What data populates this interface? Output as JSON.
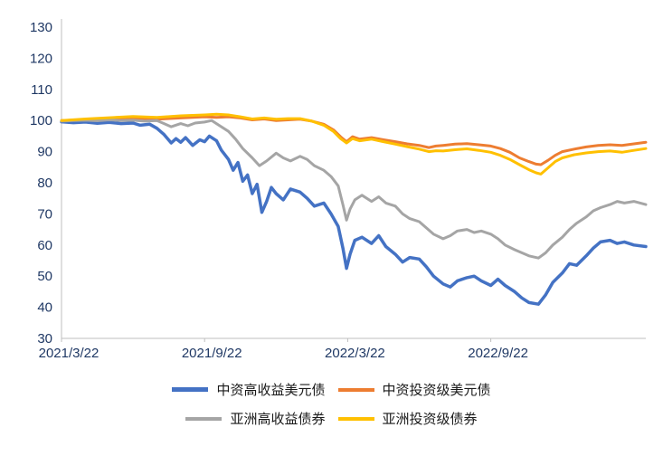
{
  "chart_data": {
    "type": "line",
    "title": "",
    "xlabel": "",
    "ylabel": "",
    "grid": false,
    "legend_position": "bottom",
    "axis_color": "#bfbfbf",
    "text_color": "#1f3864",
    "x_unit": "months since first tick",
    "x_range": [
      0,
      24.5
    ],
    "y_range": [
      30,
      130
    ],
    "y_ticks": [
      130,
      120,
      110,
      100,
      90,
      80,
      70,
      60,
      50,
      40,
      30
    ],
    "x_ticks": [
      {
        "pos": 0,
        "label": "2021/3/22"
      },
      {
        "pos": 6,
        "label": "2021/9/22"
      },
      {
        "pos": 12,
        "label": "2022/3/22"
      },
      {
        "pos": 18,
        "label": "2022/9/22"
      }
    ],
    "series": [
      {
        "name": "中资高收益美元债",
        "color": "#4472C4",
        "width": 3.5,
        "points": [
          [
            0,
            99.6
          ],
          [
            0.5,
            99.3
          ],
          [
            1,
            99.5
          ],
          [
            1.5,
            99.1
          ],
          [
            2,
            99.4
          ],
          [
            2.5,
            99.0
          ],
          [
            3,
            99.2
          ],
          [
            3.3,
            98.5
          ],
          [
            3.7,
            98.8
          ],
          [
            4,
            97.5
          ],
          [
            4.3,
            95.5
          ],
          [
            4.6,
            92.8
          ],
          [
            4.8,
            94.2
          ],
          [
            5,
            93.0
          ],
          [
            5.2,
            94.5
          ],
          [
            5.5,
            92.0
          ],
          [
            5.8,
            93.8
          ],
          [
            6,
            93.2
          ],
          [
            6.2,
            95.0
          ],
          [
            6.5,
            93.5
          ],
          [
            6.7,
            90.5
          ],
          [
            7,
            87.5
          ],
          [
            7.2,
            84.0
          ],
          [
            7.4,
            86.5
          ],
          [
            7.6,
            80.5
          ],
          [
            7.8,
            82.5
          ],
          [
            8,
            76.5
          ],
          [
            8.2,
            79.5
          ],
          [
            8.4,
            70.5
          ],
          [
            8.6,
            74.0
          ],
          [
            8.8,
            78.5
          ],
          [
            9,
            76.5
          ],
          [
            9.3,
            74.5
          ],
          [
            9.6,
            78.0
          ],
          [
            10,
            77.0
          ],
          [
            10.3,
            75.0
          ],
          [
            10.6,
            72.5
          ],
          [
            11,
            73.5
          ],
          [
            11.3,
            70.0
          ],
          [
            11.6,
            66.0
          ],
          [
            11.8,
            59.0
          ],
          [
            11.95,
            52.5
          ],
          [
            12.1,
            57.0
          ],
          [
            12.3,
            61.5
          ],
          [
            12.6,
            62.5
          ],
          [
            13,
            60.5
          ],
          [
            13.3,
            63.0
          ],
          [
            13.6,
            59.5
          ],
          [
            14,
            57.0
          ],
          [
            14.3,
            54.5
          ],
          [
            14.6,
            56.0
          ],
          [
            15,
            55.5
          ],
          [
            15.3,
            53.0
          ],
          [
            15.6,
            50.0
          ],
          [
            16,
            47.5
          ],
          [
            16.3,
            46.5
          ],
          [
            16.6,
            48.5
          ],
          [
            17,
            49.5
          ],
          [
            17.3,
            50.0
          ],
          [
            17.6,
            48.5
          ],
          [
            18,
            47.0
          ],
          [
            18.3,
            49.0
          ],
          [
            18.6,
            47.0
          ],
          [
            19,
            45.0
          ],
          [
            19.3,
            43.0
          ],
          [
            19.6,
            41.5
          ],
          [
            20,
            41.0
          ],
          [
            20.3,
            44.0
          ],
          [
            20.6,
            48.0
          ],
          [
            21,
            51.0
          ],
          [
            21.3,
            54.0
          ],
          [
            21.6,
            53.5
          ],
          [
            22,
            56.5
          ],
          [
            22.3,
            59.0
          ],
          [
            22.6,
            61.0
          ],
          [
            23,
            61.5
          ],
          [
            23.3,
            60.5
          ],
          [
            23.6,
            61.0
          ],
          [
            24,
            60.0
          ],
          [
            24.5,
            59.5
          ]
        ]
      },
      {
        "name": "中资投资级美元债",
        "color": "#ED7D31",
        "width": 3,
        "points": [
          [
            0,
            100.0
          ],
          [
            1,
            100.3
          ],
          [
            2,
            100.5
          ],
          [
            3,
            100.8
          ],
          [
            4,
            100.4
          ],
          [
            5,
            100.8
          ],
          [
            6,
            101.2
          ],
          [
            6.5,
            101.0
          ],
          [
            7,
            101.2
          ],
          [
            7.5,
            100.8
          ],
          [
            8,
            100.2
          ],
          [
            8.5,
            100.5
          ],
          [
            9,
            100.0
          ],
          [
            9.5,
            100.2
          ],
          [
            10,
            100.4
          ],
          [
            10.5,
            99.8
          ],
          [
            11,
            98.8
          ],
          [
            11.4,
            97.0
          ],
          [
            11.7,
            94.8
          ],
          [
            11.95,
            93.2
          ],
          [
            12.2,
            94.8
          ],
          [
            12.5,
            94.0
          ],
          [
            13,
            94.5
          ],
          [
            13.5,
            93.8
          ],
          [
            14,
            93.2
          ],
          [
            14.5,
            92.5
          ],
          [
            15,
            92.0
          ],
          [
            15.4,
            91.3
          ],
          [
            15.7,
            91.8
          ],
          [
            16,
            92.0
          ],
          [
            16.5,
            92.4
          ],
          [
            17,
            92.6
          ],
          [
            17.5,
            92.2
          ],
          [
            18,
            91.8
          ],
          [
            18.4,
            91.0
          ],
          [
            18.8,
            89.8
          ],
          [
            19.2,
            88.0
          ],
          [
            19.6,
            86.8
          ],
          [
            19.9,
            86.0
          ],
          [
            20.1,
            85.8
          ],
          [
            20.4,
            87.2
          ],
          [
            20.7,
            88.8
          ],
          [
            21,
            90.0
          ],
          [
            21.5,
            90.8
          ],
          [
            22,
            91.5
          ],
          [
            22.5,
            92.0
          ],
          [
            23,
            92.2
          ],
          [
            23.5,
            92.0
          ],
          [
            24,
            92.5
          ],
          [
            24.5,
            93.0
          ]
        ]
      },
      {
        "name": "亚洲高收益债券",
        "color": "#A5A5A5",
        "width": 3,
        "points": [
          [
            0,
            99.8
          ],
          [
            0.5,
            100.0
          ],
          [
            1,
            100.1
          ],
          [
            1.5,
            99.9
          ],
          [
            2,
            100.2
          ],
          [
            2.5,
            100.0
          ],
          [
            3,
            100.1
          ],
          [
            3.5,
            99.8
          ],
          [
            4,
            100.0
          ],
          [
            4.3,
            99.0
          ],
          [
            4.6,
            98.0
          ],
          [
            5,
            99.0
          ],
          [
            5.3,
            98.3
          ],
          [
            5.6,
            99.2
          ],
          [
            6,
            99.5
          ],
          [
            6.3,
            100.0
          ],
          [
            6.6,
            98.5
          ],
          [
            7,
            96.5
          ],
          [
            7.3,
            94.0
          ],
          [
            7.6,
            91.0
          ],
          [
            8,
            88.0
          ],
          [
            8.3,
            85.5
          ],
          [
            8.6,
            87.0
          ],
          [
            9,
            89.5
          ],
          [
            9.3,
            88.0
          ],
          [
            9.6,
            87.0
          ],
          [
            10,
            88.5
          ],
          [
            10.3,
            87.5
          ],
          [
            10.6,
            85.5
          ],
          [
            11,
            84.0
          ],
          [
            11.3,
            82.0
          ],
          [
            11.6,
            79.0
          ],
          [
            11.8,
            73.0
          ],
          [
            11.95,
            68.0
          ],
          [
            12.1,
            71.5
          ],
          [
            12.3,
            74.5
          ],
          [
            12.6,
            76.0
          ],
          [
            13,
            74.0
          ],
          [
            13.3,
            75.5
          ],
          [
            13.6,
            73.5
          ],
          [
            14,
            72.5
          ],
          [
            14.3,
            70.0
          ],
          [
            14.6,
            68.5
          ],
          [
            15,
            67.5
          ],
          [
            15.3,
            65.5
          ],
          [
            15.6,
            63.5
          ],
          [
            16,
            62.0
          ],
          [
            16.3,
            63.0
          ],
          [
            16.6,
            64.5
          ],
          [
            17,
            65.0
          ],
          [
            17.3,
            64.0
          ],
          [
            17.6,
            64.5
          ],
          [
            18,
            63.5
          ],
          [
            18.3,
            62.0
          ],
          [
            18.6,
            60.0
          ],
          [
            19,
            58.5
          ],
          [
            19.3,
            57.5
          ],
          [
            19.6,
            56.5
          ],
          [
            20,
            55.8
          ],
          [
            20.3,
            57.5
          ],
          [
            20.6,
            60.0
          ],
          [
            21,
            62.5
          ],
          [
            21.3,
            65.0
          ],
          [
            21.6,
            67.0
          ],
          [
            22,
            69.0
          ],
          [
            22.3,
            71.0
          ],
          [
            22.6,
            72.0
          ],
          [
            23,
            73.0
          ],
          [
            23.3,
            74.0
          ],
          [
            23.6,
            73.5
          ],
          [
            24,
            74.0
          ],
          [
            24.5,
            73.0
          ]
        ]
      },
      {
        "name": "亚洲投资级债券",
        "color": "#FFC000",
        "width": 3,
        "points": [
          [
            0,
            100.0
          ],
          [
            1,
            100.5
          ],
          [
            2,
            100.9
          ],
          [
            3,
            101.3
          ],
          [
            4,
            101.0
          ],
          [
            5,
            101.5
          ],
          [
            6,
            101.8
          ],
          [
            6.5,
            102.0
          ],
          [
            7,
            101.8
          ],
          [
            7.5,
            101.2
          ],
          [
            8,
            100.5
          ],
          [
            8.5,
            100.8
          ],
          [
            9,
            100.4
          ],
          [
            9.5,
            100.6
          ],
          [
            10,
            100.6
          ],
          [
            10.5,
            99.8
          ],
          [
            11,
            98.5
          ],
          [
            11.4,
            96.5
          ],
          [
            11.7,
            94.2
          ],
          [
            11.95,
            92.8
          ],
          [
            12.2,
            94.2
          ],
          [
            12.5,
            93.5
          ],
          [
            13,
            94.0
          ],
          [
            13.5,
            93.2
          ],
          [
            14,
            92.4
          ],
          [
            14.5,
            91.6
          ],
          [
            15,
            90.8
          ],
          [
            15.4,
            90.0
          ],
          [
            15.7,
            90.3
          ],
          [
            16,
            90.2
          ],
          [
            16.5,
            90.6
          ],
          [
            17,
            90.9
          ],
          [
            17.5,
            90.4
          ],
          [
            18,
            89.8
          ],
          [
            18.4,
            88.8
          ],
          [
            18.8,
            87.5
          ],
          [
            19.2,
            85.8
          ],
          [
            19.6,
            84.2
          ],
          [
            19.9,
            83.2
          ],
          [
            20.1,
            82.8
          ],
          [
            20.4,
            84.8
          ],
          [
            20.7,
            86.8
          ],
          [
            21,
            88.0
          ],
          [
            21.5,
            89.0
          ],
          [
            22,
            89.6
          ],
          [
            22.5,
            90.0
          ],
          [
            23,
            90.2
          ],
          [
            23.5,
            89.8
          ],
          [
            24,
            90.4
          ],
          [
            24.5,
            91.0
          ]
        ]
      }
    ]
  }
}
